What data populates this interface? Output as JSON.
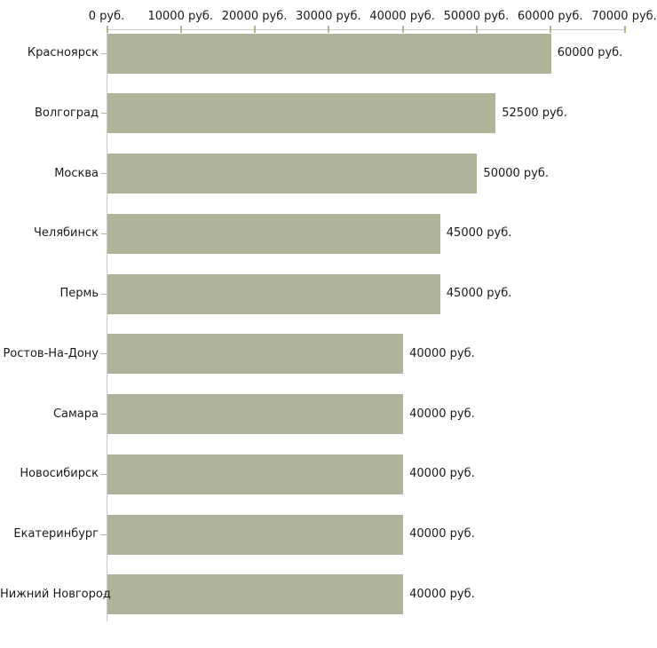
{
  "chart_data": {
    "type": "bar",
    "orientation": "horizontal",
    "title": "",
    "xlabel": "",
    "ylabel": "",
    "xlim": [
      0,
      70000
    ],
    "grid": false,
    "legend": "none",
    "x_ticks": [
      {
        "value": 0,
        "label": "0 руб."
      },
      {
        "value": 10000,
        "label": "10000 руб."
      },
      {
        "value": 20000,
        "label": "20000 руб."
      },
      {
        "value": 30000,
        "label": "30000 руб."
      },
      {
        "value": 40000,
        "label": "40000 руб."
      },
      {
        "value": 50000,
        "label": "50000 руб."
      },
      {
        "value": 60000,
        "label": "60000 руб."
      },
      {
        "value": 70000,
        "label": "70000 руб."
      }
    ],
    "categories": [
      "Красноярск",
      "Волгоград",
      "Москва",
      "Челябинск",
      "Пермь",
      "Ростов-На-Дону",
      "Самара",
      "Новосибирск",
      "Екатеринбург",
      "Нижний Новгород"
    ],
    "values": [
      60000,
      52500,
      50000,
      45000,
      45000,
      40000,
      40000,
      40000,
      40000,
      40000
    ],
    "bar_labels": [
      "60000 руб.",
      "52500 руб.",
      "50000 руб.",
      "45000 руб.",
      "45000 руб.",
      "40000 руб.",
      "40000 руб.",
      "40000 руб.",
      "40000 руб.",
      "40000 руб."
    ],
    "colors": {
      "bar": "#aeb499",
      "axis_line": "#c9c9c9",
      "tick": "#b4b48c",
      "text": "#1a1a1a",
      "background": "#ffffff"
    }
  }
}
